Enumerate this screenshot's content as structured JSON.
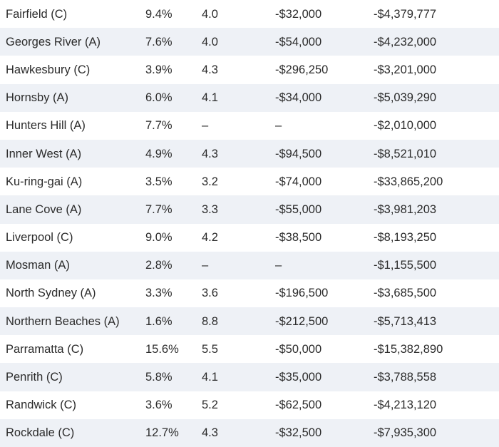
{
  "table": {
    "rows": [
      {
        "council": "Fairfield (C)",
        "percent": "9.4%",
        "score": "4.0",
        "difference": "-$32,000",
        "total": "-$4,379,777"
      },
      {
        "council": "Georges River (A)",
        "percent": "7.6%",
        "score": "4.0",
        "difference": "-$54,000",
        "total": "-$4,232,000"
      },
      {
        "council": "Hawkesbury (C)",
        "percent": "3.9%",
        "score": "4.3",
        "difference": "-$296,250",
        "total": "-$3,201,000"
      },
      {
        "council": "Hornsby (A)",
        "percent": "6.0%",
        "score": "4.1",
        "difference": "-$34,000",
        "total": "-$5,039,290"
      },
      {
        "council": "Hunters Hill (A)",
        "percent": "7.7%",
        "score": "–",
        "difference": "–",
        "total": "-$2,010,000"
      },
      {
        "council": "Inner West (A)",
        "percent": "4.9%",
        "score": "4.3",
        "difference": "-$94,500",
        "total": "-$8,521,010"
      },
      {
        "council": "Ku-ring-gai (A)",
        "percent": "3.5%",
        "score": "3.2",
        "difference": "-$74,000",
        "total": "-$33,865,200"
      },
      {
        "council": "Lane Cove (A)",
        "percent": "7.7%",
        "score": "3.3",
        "difference": "-$55,000",
        "total": "-$3,981,203"
      },
      {
        "council": "Liverpool (C)",
        "percent": "9.0%",
        "score": "4.2",
        "difference": "-$38,500",
        "total": "-$8,193,250"
      },
      {
        "council": "Mosman (A)",
        "percent": "2.8%",
        "score": "–",
        "difference": "–",
        "total": "-$1,155,500"
      },
      {
        "council": "North Sydney (A)",
        "percent": "3.3%",
        "score": "3.6",
        "difference": "-$196,500",
        "total": "-$3,685,500"
      },
      {
        "council": "Northern Beaches (A)",
        "percent": "1.6%",
        "score": "8.8",
        "difference": "-$212,500",
        "total": "-$5,713,413"
      },
      {
        "council": "Parramatta (C)",
        "percent": "15.6%",
        "score": "5.5",
        "difference": "-$50,000",
        "total": "-$15,382,890"
      },
      {
        "council": "Penrith (C)",
        "percent": "5.8%",
        "score": "4.1",
        "difference": "-$35,000",
        "total": "-$3,788,558"
      },
      {
        "council": "Randwick (C)",
        "percent": "3.6%",
        "score": "5.2",
        "difference": "-$62,500",
        "total": "-$4,213,120"
      },
      {
        "council": "Rockdale (C)",
        "percent": "12.7%",
        "score": "4.3",
        "difference": "-$32,500",
        "total": "-$7,935,300"
      }
    ]
  },
  "colors": {
    "row_shade": "#eef1f6",
    "text": "#2b2b2b",
    "background": "#ffffff"
  }
}
